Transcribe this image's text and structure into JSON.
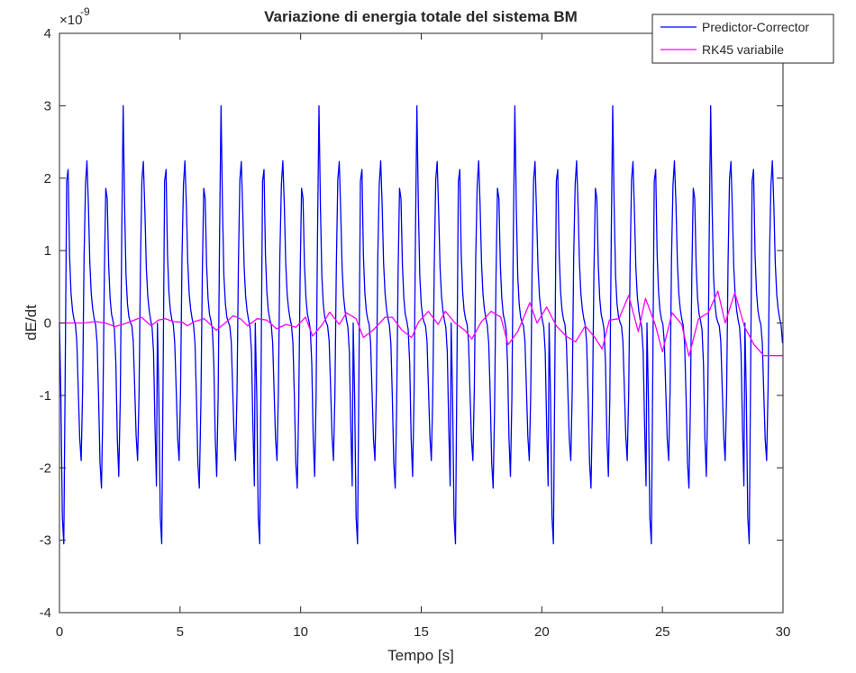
{
  "chart_data": {
    "type": "line",
    "title": "Variazione di energia totale del sistema BM",
    "xlabel": "Tempo [s]",
    "ylabel": "dE/dt",
    "y_exponent_label": "×10",
    "y_exponent_power": "-9",
    "xlim": [
      0,
      30
    ],
    "ylim": [
      -4,
      4
    ],
    "xticks": [
      0,
      5,
      10,
      15,
      20,
      25,
      30
    ],
    "xtick_labels": [
      "0",
      "5",
      "10",
      "15",
      "20",
      "25",
      "30"
    ],
    "yticks": [
      -4,
      -3,
      -2,
      -1,
      0,
      1,
      2,
      3,
      4
    ],
    "ytick_labels": [
      "-4",
      "-3",
      "-2",
      "-1",
      "0",
      "1",
      "2",
      "3",
      "4"
    ],
    "y_units_scale": 1e-09,
    "grid": false,
    "legend_position": "top-right",
    "series": [
      {
        "name": "Predictor-Corrector",
        "color": "#0000ff",
        "period": 4.06,
        "x": [
          0.0,
          0.06,
          0.12,
          0.18,
          0.24,
          0.3,
          0.36,
          0.42,
          0.48,
          0.54,
          0.6,
          0.66,
          0.72,
          0.78,
          0.84,
          0.9,
          0.96,
          1.02,
          1.08,
          1.14,
          1.2,
          1.26,
          1.32,
          1.38,
          1.44,
          1.5,
          1.56,
          1.62,
          1.68,
          1.74,
          1.8,
          1.86,
          1.92,
          1.98,
          2.04,
          2.1,
          2.16,
          2.22,
          2.28,
          2.34,
          2.4,
          2.46,
          2.52,
          2.58,
          2.64,
          2.7,
          2.76,
          2.82,
          2.88,
          2.94,
          3.0,
          3.06,
          3.12,
          3.18,
          3.24,
          3.3,
          3.36,
          3.42,
          3.48,
          3.54,
          3.6,
          3.66,
          3.72,
          3.78,
          3.84,
          3.9,
          3.96,
          4.02
        ],
        "values": [
          0.0,
          -1.04,
          -2.68,
          -3.05,
          -0.62,
          1.96,
          2.12,
          0.94,
          0.42,
          0.17,
          0.05,
          -0.02,
          -0.27,
          -0.94,
          -1.6,
          -1.9,
          -0.92,
          0.92,
          1.91,
          2.24,
          1.64,
          0.83,
          0.4,
          0.19,
          0.06,
          -0.03,
          -0.28,
          -1.02,
          -1.93,
          -2.28,
          -1.16,
          0.66,
          1.86,
          1.72,
          0.8,
          0.34,
          0.12,
          0.03,
          -0.09,
          -0.56,
          -1.59,
          -2.12,
          -1.03,
          1.22,
          3.0,
          1.61,
          0.65,
          0.26,
          0.08,
          0.01,
          -0.04,
          -0.25,
          -0.89,
          -1.56,
          -1.9,
          -0.99,
          0.82,
          1.98,
          2.23,
          1.55,
          0.76,
          0.37,
          0.17,
          0.04,
          -0.06,
          -0.4,
          -1.42,
          -2.25
        ]
      },
      {
        "name": "RK45 variabile",
        "color": "#ff00ff",
        "x": [
          0,
          0.5,
          1.0,
          1.5,
          1.9,
          2.3,
          2.8,
          3.4,
          3.6,
          3.8,
          4.1,
          4.4,
          4.7,
          5.1,
          5.3,
          5.6,
          6.0,
          6.5,
          6.8,
          7.2,
          7.5,
          7.8,
          8.2,
          8.6,
          9.0,
          9.4,
          9.8,
          10.2,
          10.5,
          10.9,
          11.2,
          11.6,
          11.9,
          12.3,
          12.6,
          13.0,
          13.5,
          13.8,
          14.2,
          14.6,
          14.9,
          15.3,
          15.7,
          16.0,
          16.4,
          16.8,
          17.1,
          17.5,
          17.9,
          18.3,
          18.6,
          19.0,
          19.5,
          19.8,
          20.2,
          20.6,
          21.0,
          21.4,
          21.8,
          22.2,
          22.5,
          22.8,
          23.2,
          23.6,
          24.0,
          24.3,
          24.7,
          25.0,
          25.4,
          25.8,
          26.1,
          26.5,
          26.9,
          27.3,
          27.6,
          28.0,
          28.4,
          28.8,
          29.2,
          29.6,
          30.0
        ],
        "values": [
          0.0,
          0.0,
          0.0,
          0.02,
          0.0,
          -0.05,
          0.0,
          0.08,
          0.02,
          -0.04,
          0.04,
          0.06,
          0.02,
          0.01,
          -0.04,
          0.02,
          0.06,
          -0.1,
          -0.02,
          0.1,
          0.06,
          -0.04,
          0.06,
          0.04,
          -0.08,
          -0.02,
          -0.06,
          0.08,
          -0.18,
          -0.02,
          0.15,
          -0.02,
          0.14,
          0.06,
          -0.2,
          -0.1,
          0.08,
          0.08,
          -0.1,
          -0.2,
          0.02,
          0.16,
          -0.02,
          0.16,
          0.0,
          -0.1,
          -0.22,
          0.02,
          0.16,
          0.08,
          -0.3,
          -0.12,
          0.28,
          0.0,
          0.22,
          -0.04,
          -0.18,
          -0.26,
          -0.04,
          -0.2,
          -0.36,
          0.04,
          0.06,
          0.38,
          -0.12,
          0.34,
          -0.02,
          -0.4,
          0.14,
          -0.02,
          -0.46,
          0.06,
          0.14,
          0.44,
          0.0,
          0.42,
          -0.05,
          -0.3,
          -0.45,
          -0.45,
          -0.45
        ]
      }
    ]
  }
}
